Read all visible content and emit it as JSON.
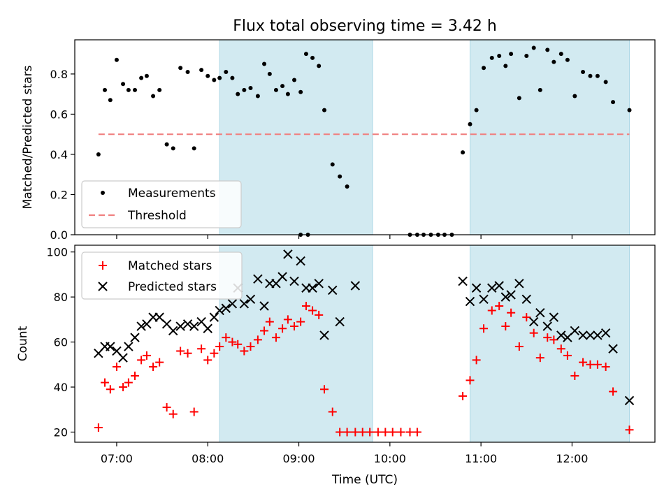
{
  "title": "Flux total observing time = 3.42 h",
  "colors": {
    "shade": "#add8e6",
    "threshold": "#f08080",
    "matched": "#ff0000",
    "predicted": "#000000",
    "measurements": "#000000"
  },
  "chart_data": [
    {
      "type": "scatter",
      "panel": "top",
      "ylabel": "Matched/Predicted stars",
      "xlabel": "",
      "ylim": [
        0,
        0.97
      ],
      "xlim_hours": [
        6.54,
        12.91
      ],
      "yticks": [
        0.0,
        0.2,
        0.4,
        0.6,
        0.8
      ],
      "ytick_labels": [
        "0.0",
        "0.2",
        "0.4",
        "0.6",
        "0.8"
      ],
      "legend": {
        "placement": "lower-left",
        "entries": [
          "Measurements",
          "Threshold"
        ]
      },
      "shaded_intervals_hours": [
        [
          8.13,
          9.81
        ],
        [
          10.88,
          12.63
        ]
      ],
      "threshold": {
        "name": "Threshold",
        "y": 0.5,
        "x_range_hours": [
          6.8,
          12.63
        ],
        "style": "dashed"
      },
      "series": [
        {
          "name": "Measurements",
          "marker": "dot",
          "points": [
            [
              6.8,
              0.4
            ],
            [
              6.87,
              0.72
            ],
            [
              6.93,
              0.67
            ],
            [
              7.0,
              0.87
            ],
            [
              7.07,
              0.75
            ],
            [
              7.13,
              0.72
            ],
            [
              7.2,
              0.72
            ],
            [
              7.27,
              0.78
            ],
            [
              7.33,
              0.79
            ],
            [
              7.4,
              0.69
            ],
            [
              7.47,
              0.72
            ],
            [
              7.55,
              0.45
            ],
            [
              7.62,
              0.43
            ],
            [
              7.7,
              0.83
            ],
            [
              7.78,
              0.81
            ],
            [
              7.85,
              0.43
            ],
            [
              7.93,
              0.82
            ],
            [
              8.0,
              0.79
            ],
            [
              8.07,
              0.77
            ],
            [
              8.13,
              0.78
            ],
            [
              8.2,
              0.81
            ],
            [
              8.27,
              0.78
            ],
            [
              8.33,
              0.7
            ],
            [
              8.4,
              0.72
            ],
            [
              8.47,
              0.73
            ],
            [
              8.55,
              0.69
            ],
            [
              8.62,
              0.85
            ],
            [
              8.68,
              0.8
            ],
            [
              8.75,
              0.72
            ],
            [
              8.82,
              0.74
            ],
            [
              8.88,
              0.7
            ],
            [
              8.95,
              0.77
            ],
            [
              9.02,
              0.71
            ],
            [
              9.08,
              0.9
            ],
            [
              9.15,
              0.88
            ],
            [
              9.22,
              0.84
            ],
            [
              9.28,
              0.62
            ],
            [
              9.37,
              0.35
            ],
            [
              9.45,
              0.29
            ],
            [
              9.53,
              0.24
            ],
            [
              9.02,
              0.0
            ],
            [
              9.1,
              0.0
            ],
            [
              10.22,
              0.0
            ],
            [
              10.3,
              0.0
            ],
            [
              10.37,
              0.0
            ],
            [
              10.45,
              0.0
            ],
            [
              10.53,
              0.0
            ],
            [
              10.6,
              0.0
            ],
            [
              10.68,
              0.0
            ],
            [
              10.8,
              0.41
            ],
            [
              10.88,
              0.55
            ],
            [
              10.95,
              0.62
            ],
            [
              11.03,
              0.83
            ],
            [
              11.12,
              0.88
            ],
            [
              11.2,
              0.89
            ],
            [
              11.27,
              0.84
            ],
            [
              11.33,
              0.9
            ],
            [
              11.42,
              0.68
            ],
            [
              11.5,
              0.89
            ],
            [
              11.58,
              0.93
            ],
            [
              11.65,
              0.72
            ],
            [
              11.73,
              0.92
            ],
            [
              11.8,
              0.86
            ],
            [
              11.88,
              0.9
            ],
            [
              11.95,
              0.87
            ],
            [
              12.03,
              0.69
            ],
            [
              12.12,
              0.81
            ],
            [
              12.2,
              0.79
            ],
            [
              12.28,
              0.79
            ],
            [
              12.37,
              0.76
            ],
            [
              12.45,
              0.66
            ],
            [
              12.63,
              0.62
            ]
          ]
        }
      ]
    },
    {
      "type": "scatter",
      "panel": "bottom",
      "ylabel": "Count",
      "xlabel": "Time (UTC)",
      "ylim": [
        15.5,
        103
      ],
      "xlim_hours": [
        6.54,
        12.91
      ],
      "xticks_hours": [
        7,
        8,
        9,
        10,
        11,
        12
      ],
      "xtick_labels": [
        "07:00",
        "08:00",
        "09:00",
        "10:00",
        "11:00",
        "12:00"
      ],
      "yticks": [
        20,
        40,
        60,
        80,
        100
      ],
      "ytick_labels": [
        "20",
        "40",
        "60",
        "80",
        "100"
      ],
      "legend": {
        "placement": "upper-left",
        "entries": [
          "Matched stars",
          "Predicted stars"
        ]
      },
      "shaded_intervals_hours": [
        [
          8.13,
          9.81
        ],
        [
          10.88,
          12.63
        ]
      ],
      "series": [
        {
          "name": "Matched stars",
          "marker": "plus",
          "points": [
            [
              6.8,
              22
            ],
            [
              6.87,
              42
            ],
            [
              6.93,
              39
            ],
            [
              7.0,
              49
            ],
            [
              7.07,
              40
            ],
            [
              7.13,
              42
            ],
            [
              7.2,
              45
            ],
            [
              7.27,
              52
            ],
            [
              7.33,
              54
            ],
            [
              7.4,
              49
            ],
            [
              7.47,
              51
            ],
            [
              7.55,
              31
            ],
            [
              7.62,
              28
            ],
            [
              7.7,
              56
            ],
            [
              7.78,
              55
            ],
            [
              7.85,
              29
            ],
            [
              7.93,
              57
            ],
            [
              8.0,
              52
            ],
            [
              8.07,
              55
            ],
            [
              8.13,
              58
            ],
            [
              8.2,
              62
            ],
            [
              8.27,
              60
            ],
            [
              8.33,
              59
            ],
            [
              8.4,
              56
            ],
            [
              8.47,
              58
            ],
            [
              8.55,
              61
            ],
            [
              8.62,
              65
            ],
            [
              8.68,
              69
            ],
            [
              8.75,
              62
            ],
            [
              8.82,
              66
            ],
            [
              8.88,
              70
            ],
            [
              8.95,
              67
            ],
            [
              9.02,
              69
            ],
            [
              9.08,
              76
            ],
            [
              9.15,
              74
            ],
            [
              9.22,
              72
            ],
            [
              9.28,
              39
            ],
            [
              9.37,
              29
            ],
            [
              9.45,
              20
            ],
            [
              9.53,
              20
            ],
            [
              9.62,
              20
            ],
            [
              9.7,
              20
            ],
            [
              9.78,
              20
            ],
            [
              9.87,
              20
            ],
            [
              9.95,
              20
            ],
            [
              10.03,
              20
            ],
            [
              10.12,
              20
            ],
            [
              10.22,
              20
            ],
            [
              10.3,
              20
            ],
            [
              10.8,
              36
            ],
            [
              10.88,
              43
            ],
            [
              10.95,
              52
            ],
            [
              11.03,
              66
            ],
            [
              11.12,
              74
            ],
            [
              11.2,
              76
            ],
            [
              11.27,
              67
            ],
            [
              11.33,
              73
            ],
            [
              11.42,
              58
            ],
            [
              11.5,
              71
            ],
            [
              11.58,
              64
            ],
            [
              11.65,
              53
            ],
            [
              11.73,
              62
            ],
            [
              11.8,
              61
            ],
            [
              11.88,
              57
            ],
            [
              11.95,
              54
            ],
            [
              12.03,
              45
            ],
            [
              12.12,
              51
            ],
            [
              12.2,
              50
            ],
            [
              12.28,
              50
            ],
            [
              12.37,
              49
            ],
            [
              12.45,
              38
            ],
            [
              12.63,
              21
            ]
          ]
        },
        {
          "name": "Predicted stars",
          "marker": "x",
          "points": [
            [
              6.8,
              55
            ],
            [
              6.87,
              58
            ],
            [
              6.93,
              58
            ],
            [
              7.0,
              56
            ],
            [
              7.07,
              53
            ],
            [
              7.13,
              58
            ],
            [
              7.2,
              62
            ],
            [
              7.27,
              67
            ],
            [
              7.33,
              68
            ],
            [
              7.4,
              71
            ],
            [
              7.47,
              71
            ],
            [
              7.55,
              68
            ],
            [
              7.62,
              65
            ],
            [
              7.7,
              67
            ],
            [
              7.78,
              68
            ],
            [
              7.85,
              67
            ],
            [
              7.93,
              69
            ],
            [
              8.0,
              66
            ],
            [
              8.07,
              71
            ],
            [
              8.13,
              74
            ],
            [
              8.2,
              75
            ],
            [
              8.27,
              77
            ],
            [
              8.33,
              84
            ],
            [
              8.4,
              77
            ],
            [
              8.47,
              79
            ],
            [
              8.55,
              88
            ],
            [
              8.62,
              76
            ],
            [
              8.68,
              86
            ],
            [
              8.75,
              86
            ],
            [
              8.82,
              89
            ],
            [
              8.88,
              99
            ],
            [
              8.95,
              87
            ],
            [
              9.02,
              96
            ],
            [
              9.08,
              84
            ],
            [
              9.15,
              84
            ],
            [
              9.22,
              86
            ],
            [
              9.28,
              63
            ],
            [
              9.37,
              83
            ],
            [
              9.45,
              69
            ],
            [
              9.62,
              85
            ],
            [
              10.8,
              87
            ],
            [
              10.88,
              78
            ],
            [
              10.95,
              84
            ],
            [
              11.03,
              79
            ],
            [
              11.12,
              84
            ],
            [
              11.2,
              85
            ],
            [
              11.27,
              80
            ],
            [
              11.33,
              81
            ],
            [
              11.42,
              86
            ],
            [
              11.5,
              79
            ],
            [
              11.58,
              69
            ],
            [
              11.65,
              73
            ],
            [
              11.73,
              67
            ],
            [
              11.8,
              71
            ],
            [
              11.88,
              63
            ],
            [
              11.95,
              62
            ],
            [
              12.03,
              65
            ],
            [
              12.12,
              63
            ],
            [
              12.2,
              63
            ],
            [
              12.28,
              63
            ],
            [
              12.37,
              64
            ],
            [
              12.45,
              57
            ],
            [
              12.63,
              34
            ]
          ]
        }
      ]
    }
  ]
}
